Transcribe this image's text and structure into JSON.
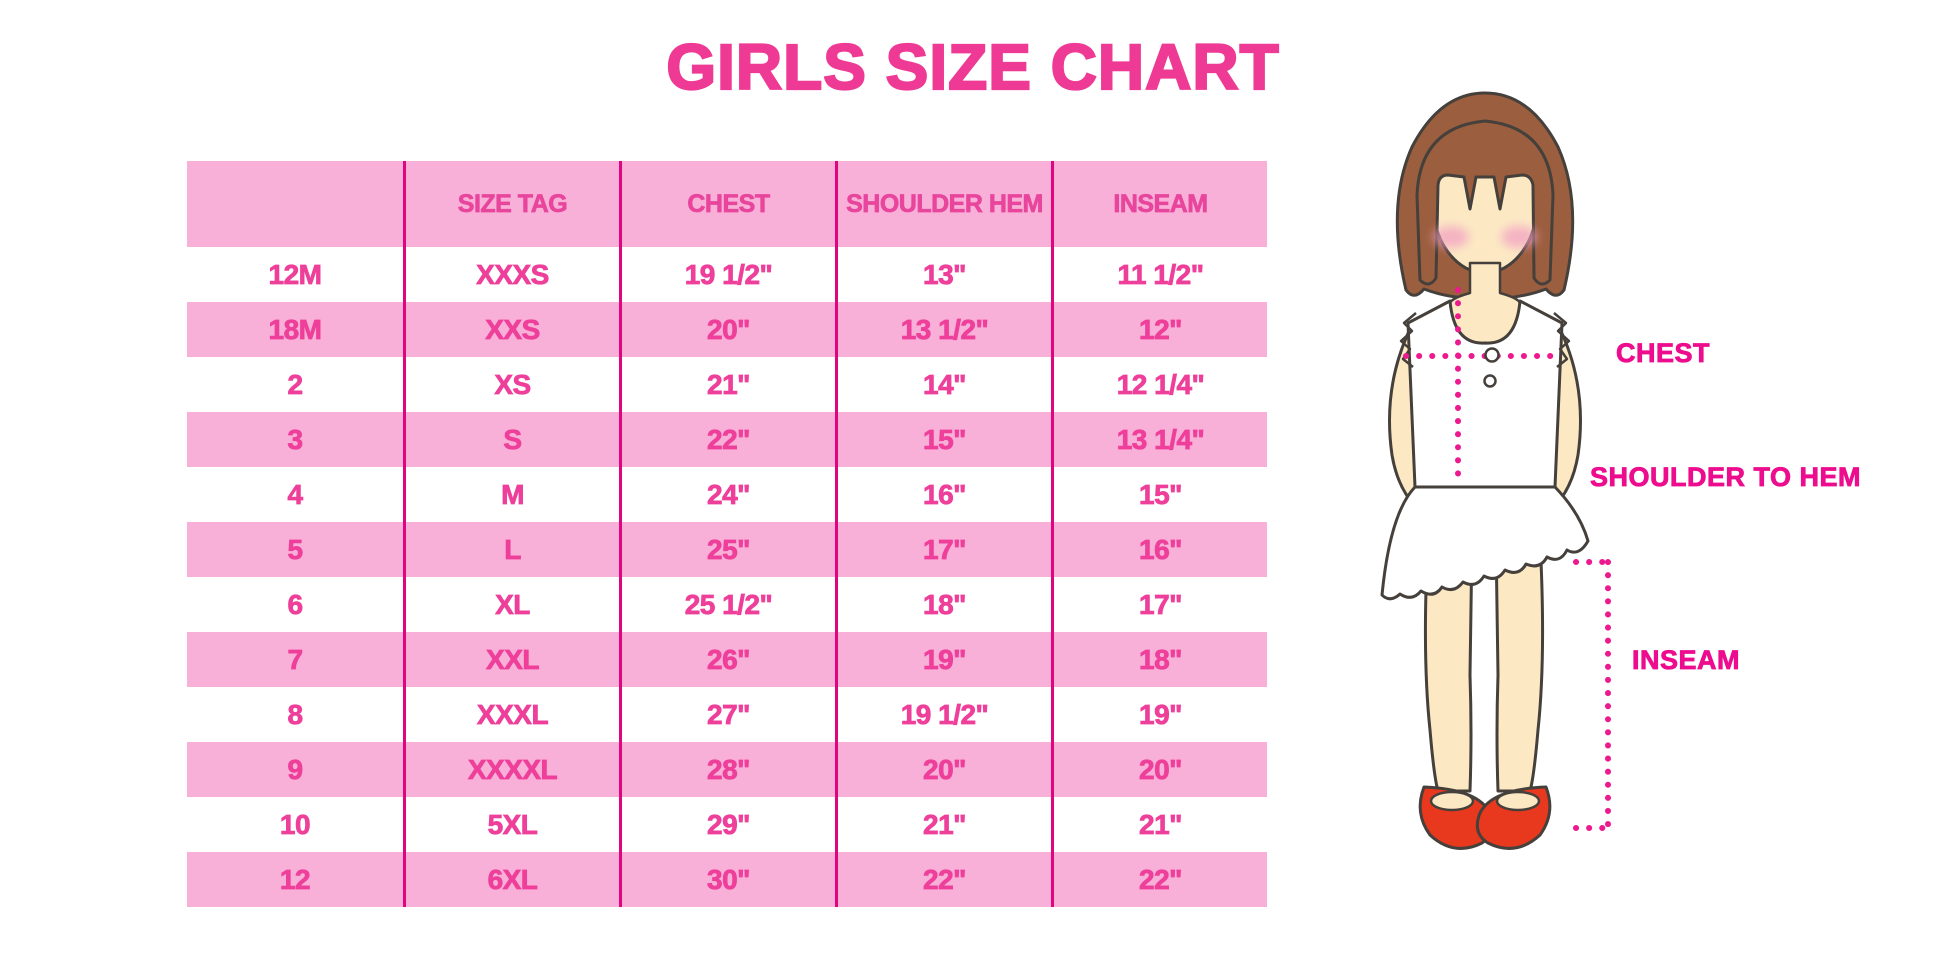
{
  "title": "GIRLS SIZE CHART",
  "chart_data": {
    "type": "table",
    "title": "GIRLS SIZE CHART",
    "columns": [
      "",
      "SIZE TAG",
      "CHEST",
      "SHOULDER HEM",
      "INSEAM"
    ],
    "rows": [
      [
        "12M",
        "XXXS",
        "19 1/2\"",
        "13\"",
        "11 1/2\""
      ],
      [
        "18M",
        "XXS",
        "20\"",
        "13 1/2\"",
        "12\""
      ],
      [
        "2",
        "XS",
        "21\"",
        "14\"",
        "12 1/4\""
      ],
      [
        "3",
        "S",
        "22\"",
        "15\"",
        "13 1/4\""
      ],
      [
        "4",
        "M",
        "24\"",
        "16\"",
        "15\""
      ],
      [
        "5",
        "L",
        "25\"",
        "17\"",
        "16\""
      ],
      [
        "6",
        "XL",
        "25 1/2\"",
        "18\"",
        "17\""
      ],
      [
        "7",
        "XXL",
        "26\"",
        "19\"",
        "18\""
      ],
      [
        "8",
        "XXXL",
        "27\"",
        "19 1/2\"",
        "19\""
      ],
      [
        "9",
        "XXXXL",
        "28\"",
        "20\"",
        "20\""
      ],
      [
        "10",
        "5XL",
        "29\"",
        "21\"",
        "21\""
      ],
      [
        "12",
        "6XL",
        "30\"",
        "22\"",
        "22\""
      ]
    ],
    "layout_hints": {
      "header_background": "pink",
      "row_striping": "white / pink alternating starting white",
      "column_separators": "magenta vertical lines only"
    }
  },
  "diagram": {
    "chest_label": "CHEST",
    "shoulder_to_hem_label": "SHOULDER TO HEM",
    "inseam_label": "INSEAM"
  },
  "colors": {
    "title_pink": "#ee3a94",
    "row_pink": "#f9b0d8",
    "cell_text_pink": "#ee3f9a",
    "separator_magenta": "#e0047e",
    "label_magenta": "#ed0c8e",
    "dotted_line_magenta": "#ec1a8e",
    "hair_brown": "#9b5e3e",
    "skin": "#fce9c4",
    "shoe_red": "#e8391f"
  }
}
